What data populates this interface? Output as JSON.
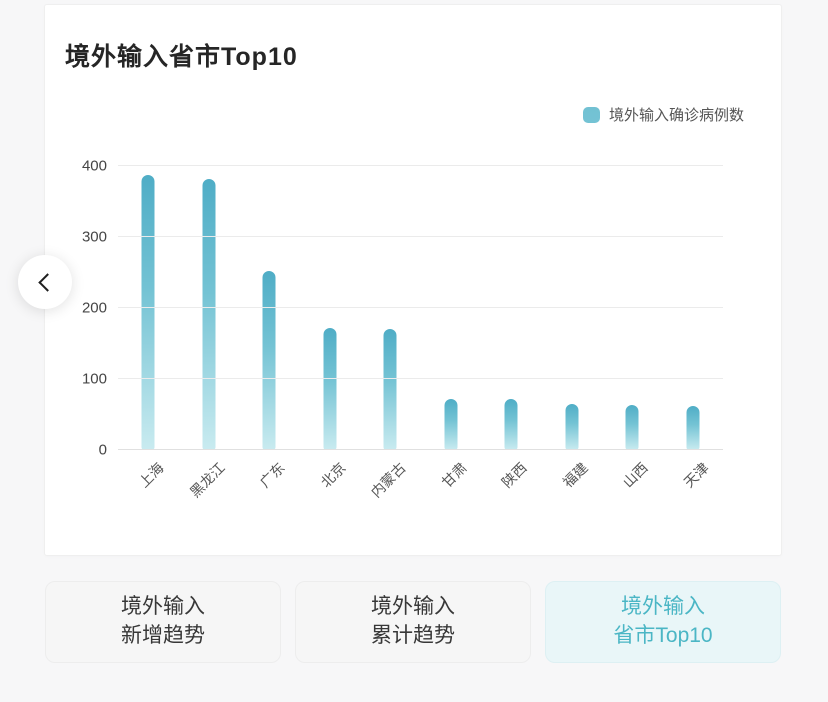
{
  "card": {
    "title": "境外输入省市Top10"
  },
  "legend": {
    "label": "境外输入确诊病例数",
    "color": "#72c1d3"
  },
  "chart_data": {
    "type": "bar",
    "title": "境外输入省市Top10",
    "series_name": "境外输入确诊病例数",
    "categories": [
      "上海",
      "黑龙江",
      "广东",
      "北京",
      "内蒙古",
      "甘肃",
      "陕西",
      "福建",
      "山西",
      "天津"
    ],
    "values": [
      387,
      382,
      252,
      172,
      170,
      72,
      72,
      65,
      64,
      62
    ],
    "xlabel": "",
    "ylabel": "",
    "ylim": [
      0,
      400
    ],
    "yticks": [
      0,
      100,
      200,
      300,
      400
    ],
    "grid": true,
    "legend_position": "top-right",
    "bar_colors": {
      "top": "#4fadc6",
      "mid": "#74c3d4",
      "bottom": "#c9ebf0"
    }
  },
  "nav": {
    "prev_icon": "chevron-left"
  },
  "tabs": [
    {
      "line1": "境外输入",
      "line2": "新增趋势",
      "active": false
    },
    {
      "line1": "境外输入",
      "line2": "累计趋势",
      "active": false
    },
    {
      "line1": "境外输入",
      "line2": "省市Top10",
      "active": true
    }
  ],
  "colors": {
    "accent": "#4bb6c5",
    "active_tab_bg": "#e9f6f8",
    "inactive_tab_bg": "#f6f6f6",
    "card_bg": "#ffffff",
    "page_bg": "#f7f7f8",
    "gridline": "#ebebeb"
  }
}
